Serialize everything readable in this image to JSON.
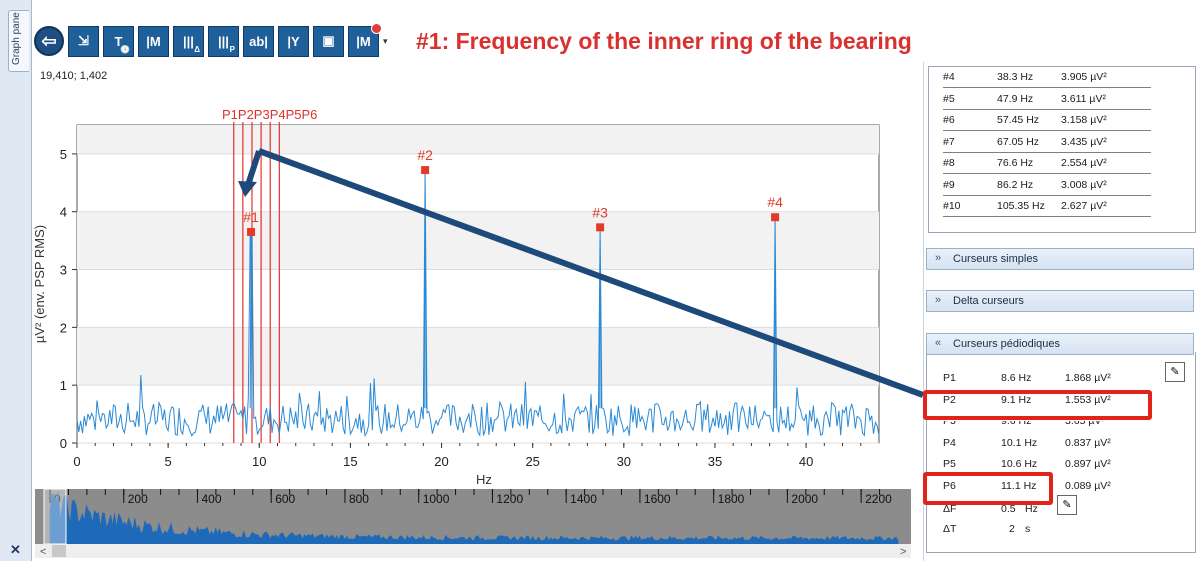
{
  "tab": {
    "label": "Graph pane"
  },
  "toolbar": {
    "annotation": "#1: Frequency of the inner ring of the bearing",
    "buttons": [
      {
        "name": "export-button",
        "glyph": "⇲",
        "sub": ""
      },
      {
        "name": "time-marker-button",
        "glyph": "T",
        "sub": "🕓"
      },
      {
        "name": "marker-button",
        "glyph": "|M",
        "sub": ""
      },
      {
        "name": "delta-cursor-button",
        "glyph": "|||",
        "sub": "Δ"
      },
      {
        "name": "periodic-cursor-button",
        "glyph": "|||",
        "sub": "P"
      },
      {
        "name": "text-label-button",
        "glyph": "ab|",
        "sub": ""
      },
      {
        "name": "y-cursor-button",
        "glyph": "|Y",
        "sub": ""
      },
      {
        "name": "save-button",
        "glyph": "▣",
        "sub": ""
      },
      {
        "name": "clear-markers-button",
        "glyph": "|M",
        "sub": ""
      }
    ]
  },
  "coords_readout": "19,410; 1,402",
  "chart_data": {
    "type": "line",
    "xlabel": "Hz",
    "ylabel": "µV² (env. PSP RMS)",
    "xlim": [
      0,
      44
    ],
    "ylim": [
      0,
      5.5
    ],
    "xticks": [
      0,
      5,
      10,
      15,
      20,
      25,
      30,
      35,
      40
    ],
    "yticks": [
      0,
      1,
      2,
      3,
      4,
      5
    ],
    "peaks": [
      {
        "label": "#1",
        "x": 9.55,
        "y": 3.65
      },
      {
        "label": "#2",
        "x": 19.1,
        "y": 4.72
      },
      {
        "label": "#3",
        "x": 28.7,
        "y": 3.73
      },
      {
        "label": "#4",
        "x": 38.3,
        "y": 3.905
      }
    ],
    "periodic_cursor_label": "P1P2P3P4P5P6",
    "periodic_lines_hz": [
      8.6,
      9.1,
      9.6,
      10.1,
      10.6,
      11.1
    ],
    "noise_level": 0.5,
    "overview": {
      "xticks": [
        0,
        200,
        400,
        600,
        800,
        1000,
        1200,
        1400,
        1600,
        1800,
        2000,
        2200
      ]
    }
  },
  "marker_table": [
    {
      "id": "#4",
      "freq": "38.3 Hz",
      "val": "3.905 µV²"
    },
    {
      "id": "#5",
      "freq": "47.9 Hz",
      "val": "3.611 µV²"
    },
    {
      "id": "#6",
      "freq": "57.45 Hz",
      "val": "3.158 µV²"
    },
    {
      "id": "#7",
      "freq": "67.05 Hz",
      "val": "3.435 µV²"
    },
    {
      "id": "#8",
      "freq": "76.6 Hz",
      "val": "2.554 µV²"
    },
    {
      "id": "#9",
      "freq": "86.2 Hz",
      "val": "3.008 µV²"
    },
    {
      "id": "#10",
      "freq": "105.35 Hz",
      "val": "2.627 µV²"
    }
  ],
  "sections": {
    "simple": "Curseurs simples",
    "delta": "Delta curseurs",
    "periodic": "Curseurs pédiodiques"
  },
  "periodic_table": [
    {
      "id": "P1",
      "freq": "8.6 Hz",
      "val": "1.868 µV²"
    },
    {
      "id": "P2",
      "freq": "9.1 Hz",
      "val": "1.553 µV²"
    },
    {
      "id": "P3",
      "freq": "9.6 Hz",
      "val": "3.65 µV²"
    },
    {
      "id": "P4",
      "freq": "10.1 Hz",
      "val": "0.837 µV²"
    },
    {
      "id": "P5",
      "freq": "10.6 Hz",
      "val": "0.897 µV²"
    },
    {
      "id": "P6",
      "freq": "11.1 Hz",
      "val": "0.089 µV²"
    }
  ],
  "deltas": {
    "df_label": "ΔF",
    "df_val": "0.5",
    "df_unit": "Hz",
    "dt_label": "ΔT",
    "dt_val": "2",
    "dt_unit": "s"
  },
  "colors": {
    "signal": "#2a8ad6",
    "marker": "#e23b2b",
    "cursor": "#e0322a",
    "arrow": "#1d4a7a",
    "highlight": "#e2231a"
  }
}
